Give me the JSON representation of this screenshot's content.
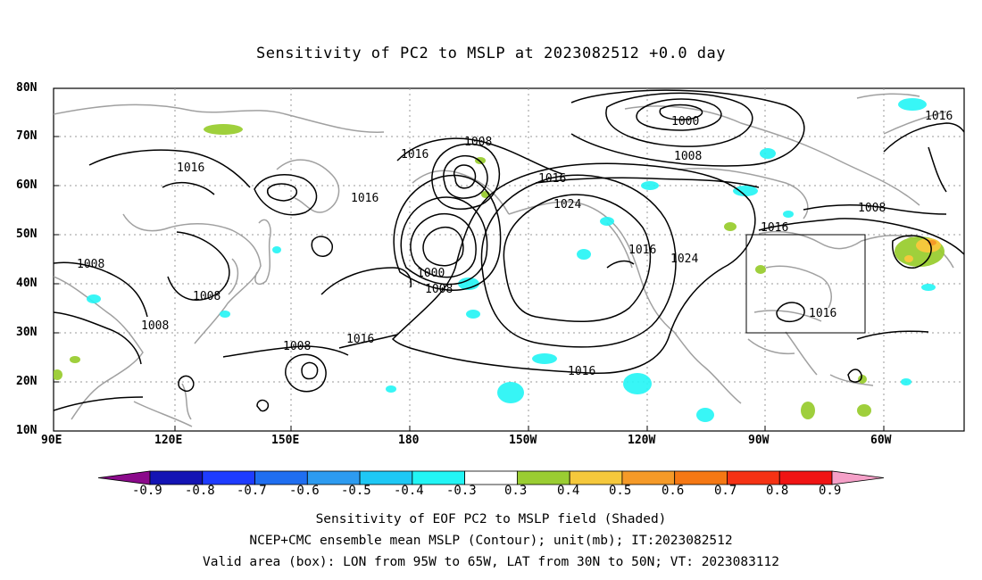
{
  "title": "Sensitivity of PC2 to MSLP at 2023082512 +0.0 day",
  "lat_labels": [
    "80N",
    "70N",
    "60N",
    "50N",
    "40N",
    "30N",
    "20N",
    "10N"
  ],
  "lon_labels": [
    "90E",
    "120E",
    "150E",
    "180",
    "150W",
    "120W",
    "90W",
    "60W"
  ],
  "contour_labels": [
    "1016",
    "1016",
    "1016",
    "1008",
    "1000",
    "1008",
    "1016",
    "1016",
    "1024",
    "1008",
    "1000",
    "1008",
    "1016",
    "1016",
    "1024",
    "1016",
    "1008",
    "1008",
    "1008",
    "1008",
    "1016",
    "1016"
  ],
  "colorbar": {
    "colors": [
      "#8b0a8b",
      "#1414b4",
      "#1e3cff",
      "#1f6ef0",
      "#2d9bf0",
      "#1ec8f5",
      "#22f5f5",
      "#ffffff",
      "#9acd32",
      "#f5c83c",
      "#f59a28",
      "#f57814",
      "#f53214",
      "#f01414",
      "#f5a0c8"
    ],
    "labels": [
      "-0.9",
      "-0.8",
      "-0.7",
      "-0.6",
      "-0.5",
      "-0.4",
      "-0.3",
      "0.3",
      "0.4",
      "0.5",
      "0.6",
      "0.7",
      "0.8",
      "0.9"
    ]
  },
  "footer": {
    "line1": "Sensitivity of EOF PC2 to MSLP field (Shaded)",
    "line2": "NCEP+CMC ensemble mean MSLP (Contour); unit(mb); IT:2023082512",
    "line3": "Valid area (box): LON from 95W to 65W, LAT from 30N to 50N; VT: 2023083112"
  },
  "colors": {
    "contour": "#000000",
    "coast": "#a0a0a0",
    "grid": "#999999",
    "positive_shade": "#9acd32",
    "negative_shade": "#22f5f5"
  }
}
